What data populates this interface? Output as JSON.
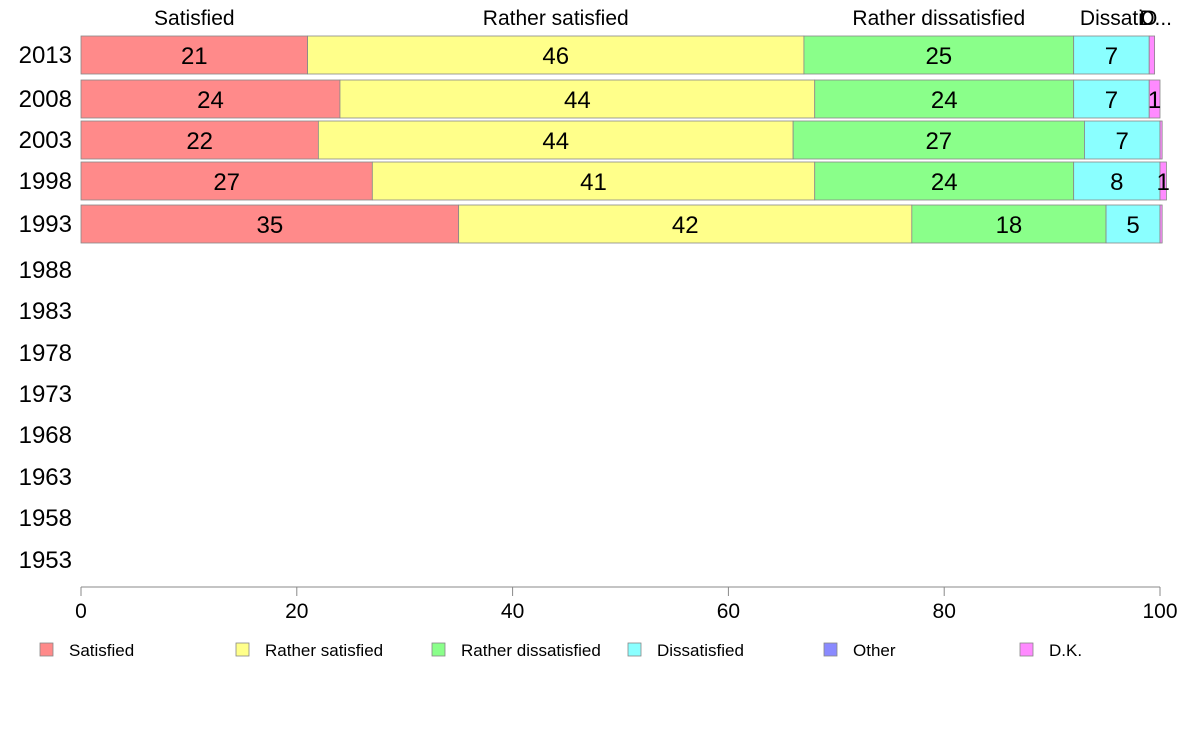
{
  "chart_data": {
    "type": "bar",
    "orientation": "horizontal",
    "stacked": true,
    "categories": [
      "2013",
      "2008",
      "2003",
      "1998",
      "1993",
      "1988",
      "1983",
      "1978",
      "1973",
      "1968",
      "1963",
      "1958",
      "1953"
    ],
    "series": [
      {
        "name": "Satisfied",
        "color": "#ff8a8a",
        "values": [
          21,
          24,
          22,
          27,
          35,
          null,
          null,
          null,
          null,
          null,
          null,
          null,
          null
        ],
        "labels": [
          "21",
          "24",
          "22",
          "27",
          "35",
          "",
          "",
          "",
          "",
          "",
          "",
          "",
          ""
        ]
      },
      {
        "name": "Rather satisfied",
        "color": "#ffff8a",
        "values": [
          46,
          44,
          44,
          41,
          42,
          null,
          null,
          null,
          null,
          null,
          null,
          null,
          null
        ],
        "labels": [
          "46",
          "44",
          "44",
          "41",
          "42",
          "",
          "",
          "",
          "",
          "",
          "",
          "",
          ""
        ]
      },
      {
        "name": "Rather dissatisfied",
        "color": "#8aff8a",
        "values": [
          25,
          24,
          27,
          24,
          18,
          null,
          null,
          null,
          null,
          null,
          null,
          null,
          null
        ],
        "labels": [
          "25",
          "24",
          "27",
          "24",
          "18",
          "",
          "",
          "",
          "",
          "",
          "",
          "",
          ""
        ]
      },
      {
        "name": "Dissatisfied",
        "color": "#8affff",
        "values": [
          7,
          7,
          7,
          8,
          5,
          null,
          null,
          null,
          null,
          null,
          null,
          null,
          null
        ],
        "labels": [
          "7",
          "7",
          "7",
          "8",
          "5",
          "",
          "",
          "",
          "",
          "",
          "",
          "",
          ""
        ]
      },
      {
        "name": "Other",
        "color": "#8a8aff",
        "values": [
          0,
          0,
          0,
          0,
          0,
          null,
          null,
          null,
          null,
          null,
          null,
          null,
          null
        ],
        "labels": [
          "",
          "",
          "",
          "",
          "",
          "",
          "",
          "",
          "",
          "",
          "",
          "",
          ""
        ]
      },
      {
        "name": "D.K.",
        "color": "#ff8aff",
        "values": [
          0.5,
          1,
          0.2,
          0.6,
          0.2,
          null,
          null,
          null,
          null,
          null,
          null,
          null,
          null
        ],
        "labels": [
          "",
          "1",
          "",
          "1",
          "",
          "",
          "",
          "",
          "",
          "",
          "",
          "",
          ""
        ]
      }
    ],
    "top_labels": [
      "Satisfied",
      "Rather satisfied",
      "Rather dissatisfied",
      "Dissati",
      "O",
      "D..."
    ],
    "xlim": [
      0,
      100
    ],
    "xticks": [
      "0",
      "20",
      "40",
      "60",
      "80",
      "100"
    ],
    "xlabel": "",
    "ylabel": "",
    "title": "",
    "grid": false,
    "legend_position": "bottom",
    "axis_color": "#888888",
    "bar_stroke": "#888888"
  }
}
